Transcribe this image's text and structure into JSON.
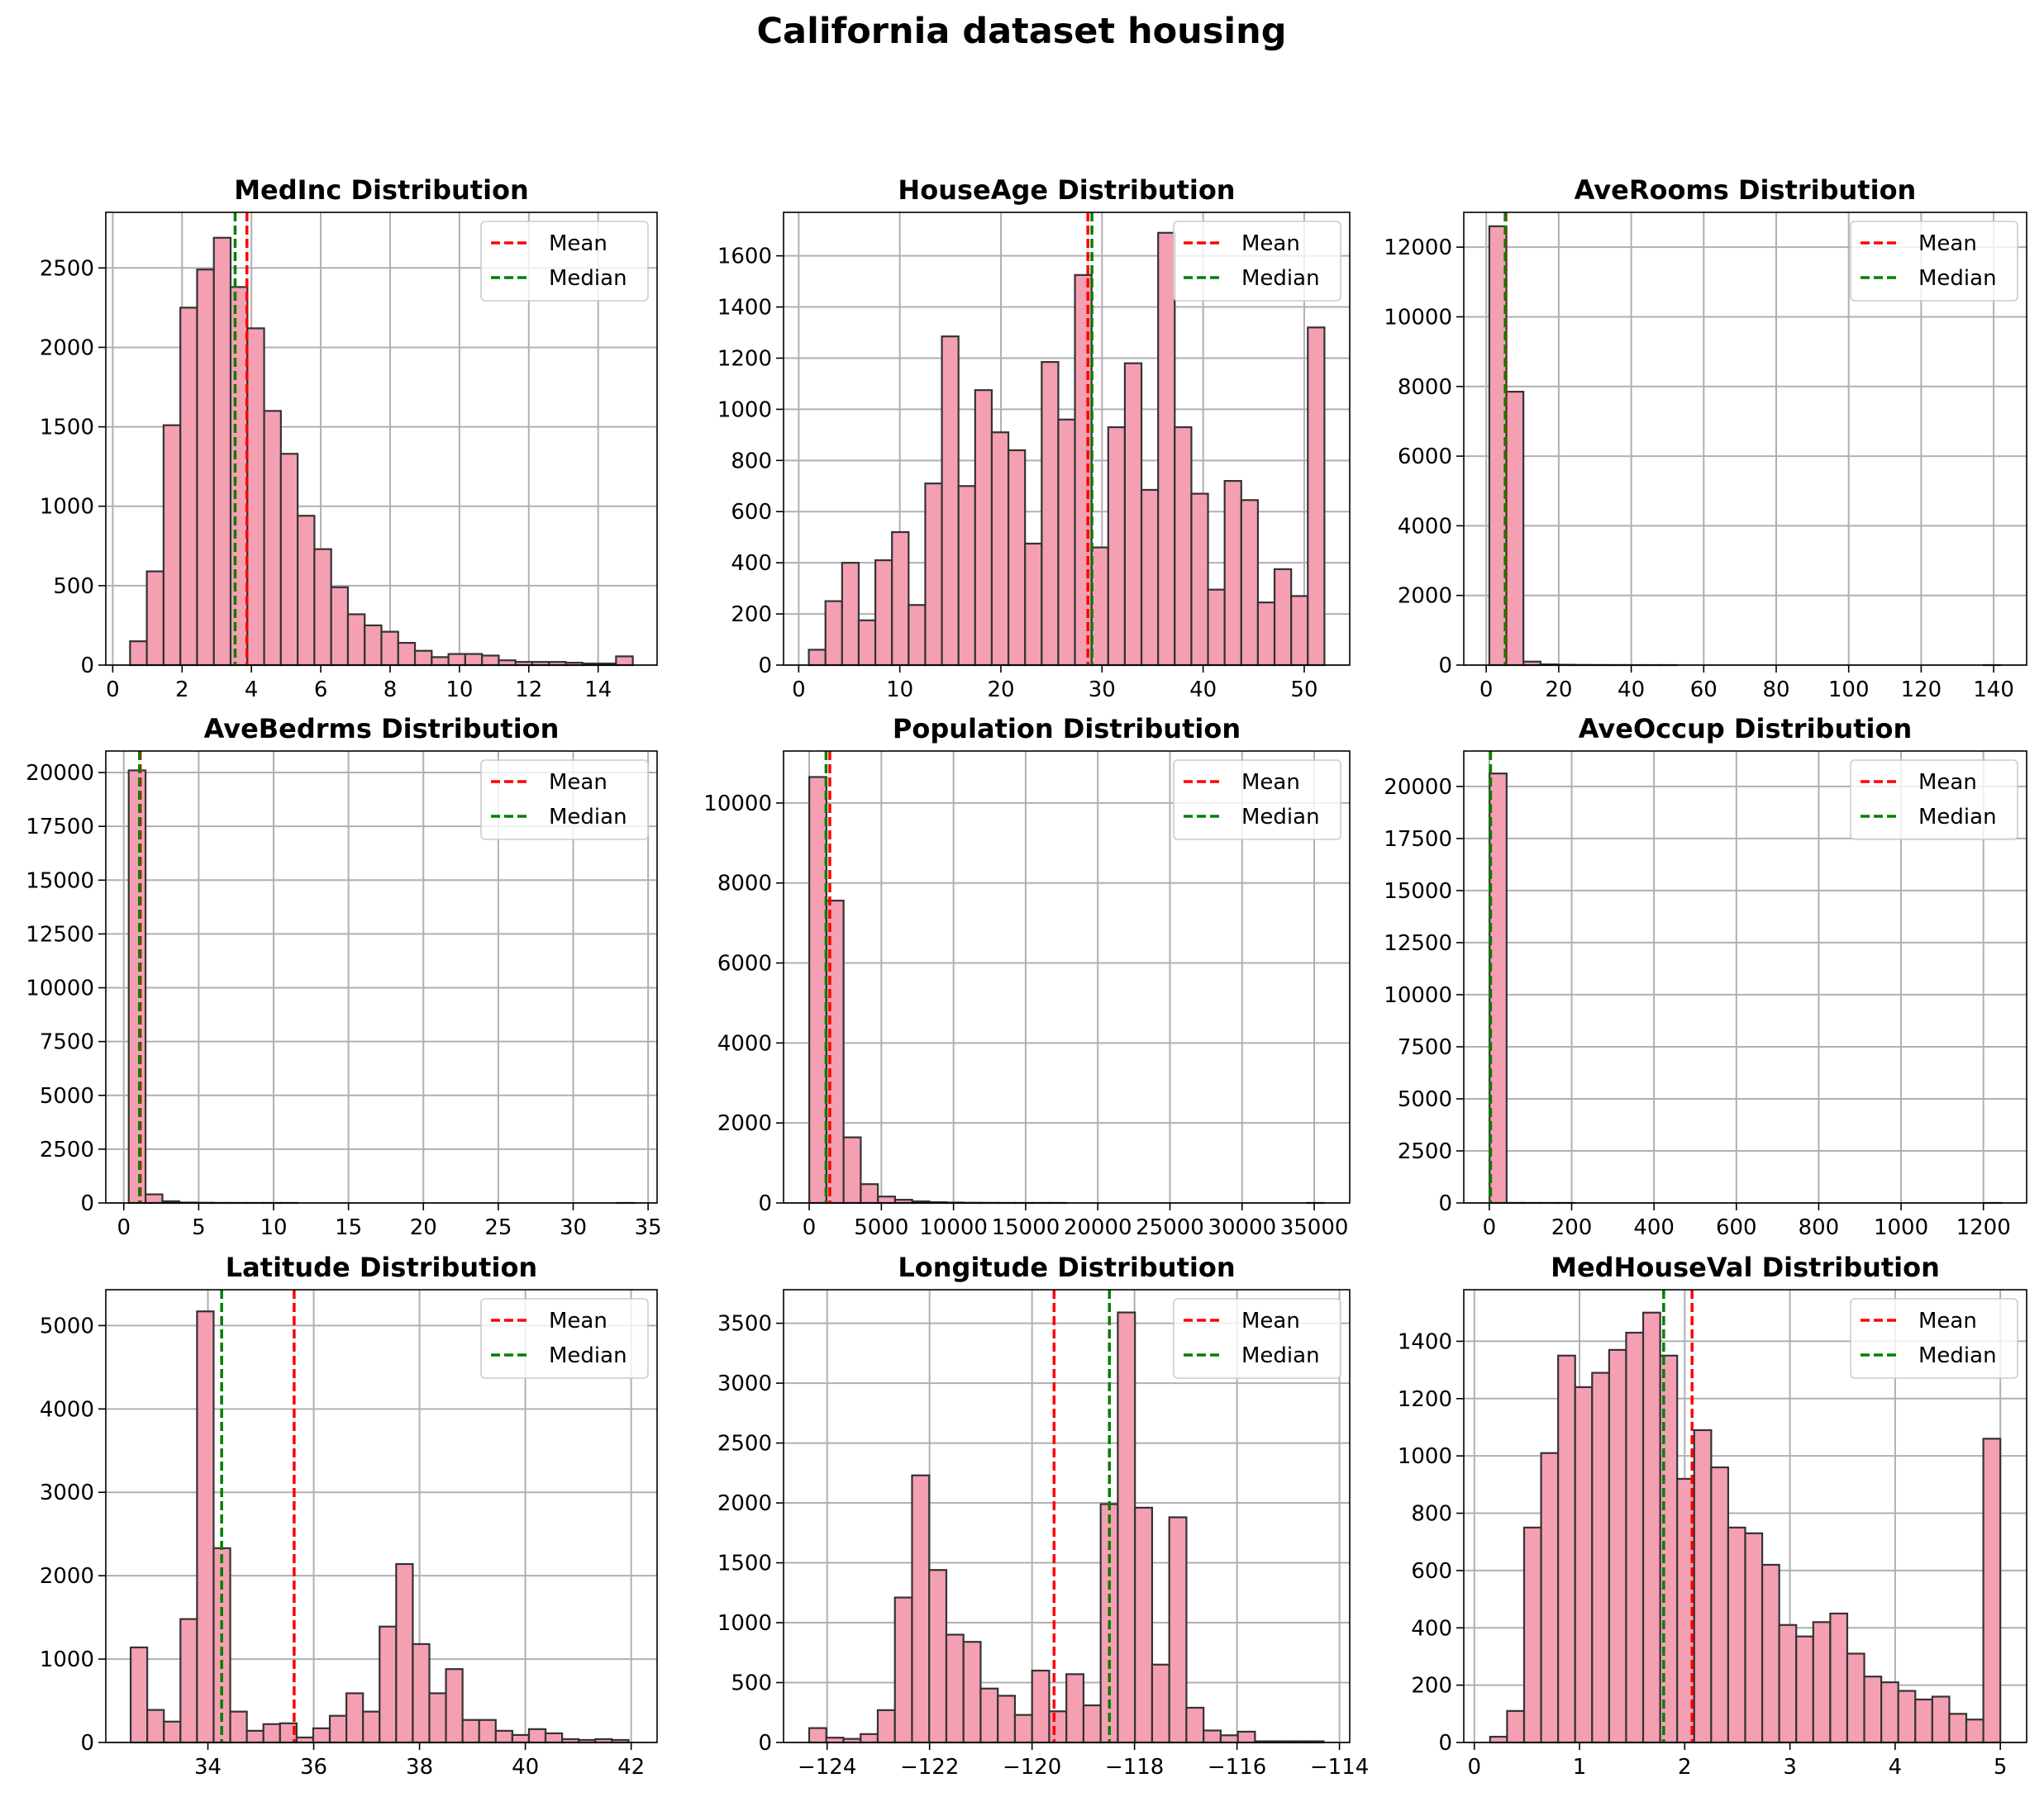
{
  "title": "California dataset housing",
  "colors": {
    "bar_fill": "#f4a0b2",
    "bar_edge": "#333333",
    "mean": "#ff0000",
    "median": "#008000",
    "grid": "#b0b0b0"
  },
  "legend": {
    "placement": "upper right",
    "mean_label": "Mean",
    "median_label": "Median"
  },
  "chart_data": [
    {
      "type": "bar",
      "title": "MedInc Distribution",
      "xlabel": "",
      "ylabel": "",
      "grid": true,
      "xlim": [
        -0.2,
        15.7
      ],
      "ylim": [
        0,
        2850
      ],
      "xticks": [
        0,
        2,
        4,
        6,
        8,
        10,
        12,
        14
      ],
      "xticklabels": [
        "0",
        "2",
        "4",
        "6",
        "8",
        "10",
        "12",
        "14"
      ],
      "yticks": [
        0,
        500,
        1000,
        1500,
        2000,
        2500
      ],
      "yticklabels": [
        "0",
        "500",
        "1000",
        "1500",
        "2000",
        "2500"
      ],
      "bin_start": 0.5,
      "bin_end": 15.0,
      "values": [
        150,
        590,
        1510,
        2250,
        2490,
        2690,
        2380,
        2120,
        1600,
        1330,
        940,
        730,
        490,
        320,
        250,
        210,
        140,
        90,
        50,
        70,
        70,
        60,
        30,
        20,
        20,
        20,
        15,
        10,
        10,
        55
      ],
      "mean": 3.87,
      "median": 3.53
    },
    {
      "type": "bar",
      "title": "HouseAge Distribution",
      "xlabel": "",
      "ylabel": "",
      "grid": true,
      "xlim": [
        -1.5,
        54.5
      ],
      "ylim": [
        0,
        1770
      ],
      "xticks": [
        0,
        10,
        20,
        30,
        40,
        50
      ],
      "xticklabels": [
        "0",
        "10",
        "20",
        "30",
        "40",
        "50"
      ],
      "yticks": [
        0,
        200,
        400,
        600,
        800,
        1000,
        1200,
        1400,
        1600
      ],
      "yticklabels": [
        "0",
        "200",
        "400",
        "600",
        "800",
        "1000",
        "1200",
        "1400",
        "1600"
      ],
      "bin_start": 1,
      "bin_end": 52,
      "values": [
        60,
        250,
        400,
        175,
        410,
        520,
        235,
        710,
        1285,
        700,
        1075,
        910,
        840,
        475,
        1185,
        960,
        1525,
        460,
        930,
        1180,
        685,
        1690,
        930,
        670,
        295,
        720,
        645,
        245,
        375,
        270,
        1320
      ],
      "mean": 28.6,
      "median": 29.0
    },
    {
      "type": "bar",
      "title": "AveRooms Distribution",
      "xlabel": "",
      "ylabel": "",
      "grid": true,
      "xlim": [
        -6.2,
        149.1
      ],
      "ylim": [
        0,
        13000
      ],
      "xticks": [
        0,
        20,
        40,
        60,
        80,
        100,
        120,
        140
      ],
      "xticklabels": [
        "0",
        "20",
        "40",
        "60",
        "80",
        "100",
        "120",
        "140"
      ],
      "yticks": [
        0,
        2000,
        4000,
        6000,
        8000,
        10000,
        12000
      ],
      "yticklabels": [
        "0",
        "2000",
        "4000",
        "6000",
        "8000",
        "10000",
        "12000"
      ],
      "bin_start": 0.85,
      "bin_end": 141.9,
      "values": [
        12600,
        7850,
        100,
        20,
        10,
        5,
        3,
        2,
        1,
        1,
        1,
        0,
        0,
        0,
        0,
        0,
        0,
        0,
        0,
        0,
        0,
        0,
        0,
        0,
        0,
        0,
        0,
        0,
        0,
        1
      ],
      "mean": 5.43,
      "median": 5.23
    },
    {
      "type": "bar",
      "title": "AveBedrms Distribution",
      "xlabel": "",
      "ylabel": "",
      "grid": true,
      "xlim": [
        -1.2,
        35.6
      ],
      "ylim": [
        0,
        21000
      ],
      "xticks": [
        0,
        5,
        10,
        15,
        20,
        25,
        30,
        35
      ],
      "xticklabels": [
        "0",
        "5",
        "10",
        "15",
        "20",
        "25",
        "30",
        "35"
      ],
      "yticks": [
        0,
        2500,
        5000,
        7500,
        10000,
        12500,
        15000,
        17500,
        20000
      ],
      "yticklabels": [
        "0",
        "2500",
        "5000",
        "7500",
        "10000",
        "12500",
        "15000",
        "17500",
        "20000"
      ],
      "bin_start": 0.33,
      "bin_end": 34.07,
      "values": [
        20100,
        400,
        80,
        20,
        10,
        5,
        3,
        2,
        1,
        1,
        0,
        0,
        0,
        0,
        0,
        0,
        0,
        0,
        0,
        0,
        0,
        0,
        0,
        0,
        0,
        0,
        0,
        0,
        0,
        1
      ],
      "mean": 1.1,
      "median": 1.05
    },
    {
      "type": "bar",
      "title": "Population Distribution",
      "xlabel": "",
      "ylabel": "",
      "grid": true,
      "xlim": [
        -1780,
        37460
      ],
      "ylim": [
        0,
        11300
      ],
      "xticks": [
        0,
        5000,
        10000,
        15000,
        20000,
        25000,
        30000,
        35000
      ],
      "xticklabels": [
        "0",
        "5000",
        "10000",
        "15000",
        "20000",
        "25000",
        "30000",
        "35000"
      ],
      "yticks": [
        0,
        2000,
        4000,
        6000,
        8000,
        10000
      ],
      "yticklabels": [
        "0",
        "2000",
        "4000",
        "6000",
        "8000",
        "10000"
      ],
      "bin_start": 3,
      "bin_end": 35682,
      "values": [
        10650,
        7560,
        1640,
        470,
        160,
        80,
        40,
        20,
        10,
        5,
        3,
        2,
        1,
        1,
        1,
        0,
        0,
        0,
        0,
        0,
        0,
        0,
        0,
        0,
        0,
        0,
        0,
        0,
        0,
        1
      ],
      "mean": 1425,
      "median": 1166
    },
    {
      "type": "bar",
      "title": "AveOccup Distribution",
      "xlabel": "",
      "ylabel": "",
      "grid": true,
      "xlim": [
        -62,
        1305
      ],
      "ylim": [
        0,
        21700
      ],
      "xticks": [
        0,
        200,
        400,
        600,
        800,
        1000,
        1200
      ],
      "xticklabels": [
        "0",
        "200",
        "400",
        "600",
        "800",
        "1000",
        "1200"
      ],
      "yticks": [
        0,
        2500,
        5000,
        7500,
        10000,
        12500,
        15000,
        17500,
        20000
      ],
      "yticklabels": [
        "0",
        "2500",
        "5000",
        "7500",
        "10000",
        "12500",
        "15000",
        "17500",
        "20000"
      ],
      "bin_start": 0.69,
      "bin_end": 1243.3,
      "values": [
        20620,
        5,
        2,
        1,
        1,
        0,
        0,
        0,
        0,
        0,
        0,
        0,
        0,
        0,
        0,
        0,
        0,
        0,
        0,
        0,
        0,
        0,
        0,
        0,
        0,
        0,
        0,
        0,
        0,
        1
      ],
      "mean": 3.07,
      "median": 2.82
    },
    {
      "type": "bar",
      "title": "Latitude Distribution",
      "xlabel": "",
      "ylabel": "",
      "grid": true,
      "xlim": [
        32.07,
        42.49
      ],
      "ylim": [
        0,
        5430
      ],
      "xticks": [
        34,
        36,
        38,
        40,
        42
      ],
      "xticklabels": [
        "34",
        "36",
        "38",
        "40",
        "42"
      ],
      "yticks": [
        0,
        1000,
        2000,
        3000,
        4000,
        5000
      ],
      "yticklabels": [
        "0",
        "1000",
        "2000",
        "3000",
        "4000",
        "5000"
      ],
      "bin_start": 32.54,
      "bin_end": 41.95,
      "values": [
        1140,
        390,
        250,
        1480,
        5170,
        2330,
        370,
        140,
        220,
        230,
        60,
        170,
        320,
        590,
        370,
        1390,
        2140,
        1180,
        590,
        880,
        270,
        270,
        140,
        90,
        160,
        110,
        40,
        30,
        40,
        30
      ],
      "mean": 35.63,
      "median": 34.26
    },
    {
      "type": "bar",
      "title": "Longitude Distribution",
      "xlabel": "",
      "ylabel": "",
      "grid": true,
      "xlim": [
        -124.85,
        -113.8
      ],
      "ylim": [
        0,
        3780
      ],
      "xticks": [
        -124,
        -122,
        -120,
        -118,
        -116,
        -114
      ],
      "xticklabels": [
        "−124",
        "−122",
        "−120",
        "−118",
        "−116",
        "−114"
      ],
      "yticks": [
        0,
        500,
        1000,
        1500,
        2000,
        2500,
        3000,
        3500
      ],
      "yticklabels": [
        "0",
        "500",
        "1000",
        "1500",
        "2000",
        "2500",
        "3000",
        "3500"
      ],
      "bin_start": -124.35,
      "bin_end": -114.31,
      "values": [
        120,
        40,
        30,
        70,
        270,
        1210,
        2230,
        1440,
        900,
        840,
        450,
        390,
        230,
        600,
        260,
        570,
        310,
        1990,
        3590,
        1960,
        650,
        1880,
        290,
        100,
        60,
        90,
        10,
        10,
        10,
        10
      ],
      "mean": -119.57,
      "median": -118.49
    },
    {
      "type": "bar",
      "title": "MedHouseVal Distribution",
      "xlabel": "",
      "ylabel": "",
      "grid": true,
      "xlim": [
        -0.1,
        5.25
      ],
      "ylim": [
        0,
        1580
      ],
      "xticks": [
        0,
        1,
        2,
        3,
        4,
        5
      ],
      "xticklabels": [
        "0",
        "1",
        "2",
        "3",
        "4",
        "5"
      ],
      "yticks": [
        0,
        200,
        400,
        600,
        800,
        1000,
        1200,
        1400
      ],
      "yticklabels": [
        "0",
        "200",
        "400",
        "600",
        "800",
        "1000",
        "1200",
        "1400"
      ],
      "bin_start": 0.15,
      "bin_end": 5.0,
      "values": [
        20,
        110,
        750,
        1010,
        1350,
        1240,
        1290,
        1370,
        1430,
        1500,
        1350,
        920,
        1090,
        960,
        750,
        730,
        620,
        410,
        370,
        420,
        450,
        310,
        230,
        210,
        180,
        150,
        160,
        100,
        80,
        1060
      ],
      "mean": 2.07,
      "median": 1.8
    }
  ]
}
